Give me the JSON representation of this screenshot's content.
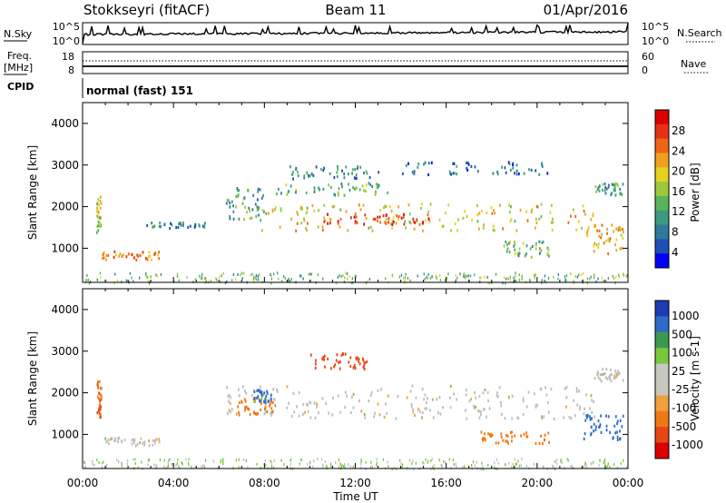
{
  "header": {
    "station": "Stokkseyri (fitACF)",
    "beam": "Beam 11",
    "date": "01/Apr/2016"
  },
  "top_panels": {
    "nsky_label": "N.Sky",
    "nsky_ticks": [
      "10^5",
      "10^0"
    ],
    "nsearch_label": "N.Search",
    "nsearch_ticks": [
      "10^5",
      "10^0"
    ],
    "freq_label": "Freq.",
    "freq_unit": "[MHz]",
    "freq_ticks": [
      "18",
      "8"
    ],
    "nave_label": "Nave",
    "nave_ticks": [
      "60",
      "0"
    ],
    "cpid_label": "CPID",
    "cpid_value": "normal (fast) 151"
  },
  "colors": {
    "power_scale": [
      "#0000ff",
      "#1e50b4",
      "#2e7a9a",
      "#3c9a80",
      "#58b45a",
      "#9ec83c",
      "#e6d21e",
      "#f0a01e",
      "#f06414",
      "#e63214",
      "#dc0000"
    ],
    "velocity_scale": [
      "#1e3cb4",
      "#2e6cc8",
      "#3c9a50",
      "#78c83c",
      "#c8c8c0",
      "#c8c8c0",
      "#f0a03c",
      "#f07814",
      "#e64614",
      "#dc0000"
    ],
    "ground_gray": "#bebebe"
  },
  "chart_data": [
    {
      "type": "heatmap",
      "name_role": "power-panel",
      "x_label": "Time UT",
      "y_label": "Slant Range [km]",
      "xlim": [
        0,
        24
      ],
      "ylim": [
        180,
        4500
      ],
      "x_ticks": [
        "00:00",
        "04:00",
        "08:00",
        "12:00",
        "16:00",
        "20:00",
        "00:00"
      ],
      "y_ticks": [
        "1000",
        "2000",
        "3000",
        "4000"
      ],
      "colorbar": {
        "label": "Power [dB]",
        "ticks": [
          "28",
          "24",
          "20",
          "16",
          "12",
          "8",
          "4"
        ],
        "range": [
          0,
          30
        ]
      },
      "bands": [
        {
          "t0": 0.6,
          "t1": 0.8,
          "r0": 1400,
          "r1": 2300,
          "value": 16
        },
        {
          "t0": 0.7,
          "t1": 3.4,
          "r0": 750,
          "r1": 950,
          "value": 22
        },
        {
          "t0": 2.8,
          "t1": 5.5,
          "r0": 1500,
          "r1": 1650,
          "value": 8
        },
        {
          "t0": 6.3,
          "t1": 8.0,
          "r0": 1700,
          "r1": 2500,
          "value": 10
        },
        {
          "t0": 7.8,
          "t1": 22.5,
          "r0": 1450,
          "r1": 2100,
          "value": 18
        },
        {
          "t0": 10.5,
          "t1": 15.5,
          "r0": 1600,
          "r1": 1850,
          "value": 26
        },
        {
          "t0": 8.5,
          "t1": 13.5,
          "r0": 2300,
          "r1": 2600,
          "value": 12
        },
        {
          "t0": 9.0,
          "t1": 13.0,
          "r0": 2700,
          "r1": 3000,
          "value": 8
        },
        {
          "t0": 14.0,
          "t1": 20.5,
          "r0": 2800,
          "r1": 3100,
          "value": 6
        },
        {
          "t0": 18.5,
          "t1": 20.5,
          "r0": 800,
          "r1": 1200,
          "value": 12
        },
        {
          "t0": 22.0,
          "t1": 23.8,
          "r0": 900,
          "r1": 1600,
          "value": 20
        },
        {
          "t0": 22.5,
          "t1": 23.8,
          "r0": 2300,
          "r1": 2600,
          "value": 10
        }
      ]
    },
    {
      "type": "heatmap",
      "name_role": "velocity-panel",
      "x_label": "Time UT",
      "y_label": "Slant Range [km]",
      "xlim": [
        0,
        24
      ],
      "ylim": [
        180,
        4500
      ],
      "x_ticks": [
        "00:00",
        "04:00",
        "08:00",
        "12:00",
        "16:00",
        "20:00",
        "00:00"
      ],
      "y_ticks": [
        "1000",
        "2000",
        "3000",
        "4000"
      ],
      "colorbar": {
        "label": "Velocity [m s-1]",
        "ticks": [
          "1000",
          "500",
          "100",
          "25",
          "-25",
          "-100",
          "-500",
          "-1000"
        ]
      },
      "bands": [
        {
          "t0": 0.6,
          "t1": 0.8,
          "r0": 1400,
          "r1": 2300,
          "value": -500
        },
        {
          "t0": 0.9,
          "t1": 3.4,
          "r0": 750,
          "r1": 950,
          "value": 0
        },
        {
          "t0": 6.3,
          "t1": 22.5,
          "r0": 1400,
          "r1": 2200,
          "value": 0
        },
        {
          "t0": 6.8,
          "t1": 8.5,
          "r0": 1500,
          "r1": 1900,
          "value": -300
        },
        {
          "t0": 7.5,
          "t1": 8.3,
          "r0": 1800,
          "r1": 2100,
          "value": 150
        },
        {
          "t0": 10.0,
          "t1": 12.5,
          "r0": 2600,
          "r1": 3000,
          "value": -600
        },
        {
          "t0": 17.5,
          "t1": 20.5,
          "r0": 800,
          "r1": 1100,
          "value": -300
        },
        {
          "t0": 22.0,
          "t1": 23.8,
          "r0": 900,
          "r1": 1500,
          "value": 200
        },
        {
          "t0": 22.5,
          "t1": 23.8,
          "r0": 2300,
          "r1": 2600,
          "value": 0
        }
      ]
    }
  ]
}
